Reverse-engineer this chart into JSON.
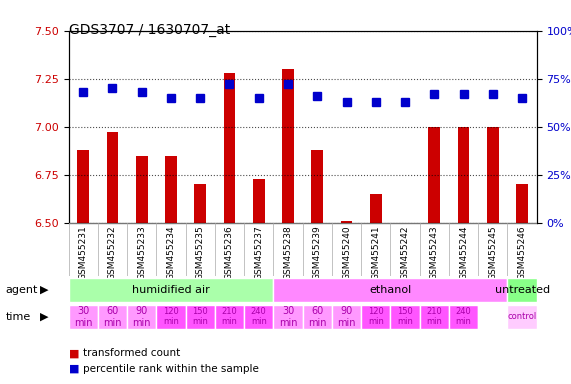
{
  "title": "GDS3707 / 1630707_at",
  "samples": [
    "GSM455231",
    "GSM455232",
    "GSM455233",
    "GSM455234",
    "GSM455235",
    "GSM455236",
    "GSM455237",
    "GSM455238",
    "GSM455239",
    "GSM455240",
    "GSM455241",
    "GSM455242",
    "GSM455243",
    "GSM455244",
    "GSM455245",
    "GSM455246"
  ],
  "transformed_count": [
    6.88,
    6.97,
    6.85,
    6.85,
    6.7,
    7.28,
    6.73,
    7.3,
    6.88,
    6.51,
    6.65,
    6.5,
    7.0,
    7.0,
    7.0,
    6.7
  ],
  "percentile_rank": [
    68,
    70,
    68,
    65,
    65,
    72,
    65,
    72,
    66,
    63,
    63,
    63,
    67,
    67,
    67,
    65
  ],
  "ylim_left": [
    6.5,
    7.5
  ],
  "ylim_right": [
    0,
    100
  ],
  "yticks_left": [
    6.5,
    6.75,
    7.0,
    7.25,
    7.5
  ],
  "yticks_right": [
    0,
    25,
    50,
    75,
    100
  ],
  "bar_color": "#cc0000",
  "dot_color": "#0000cc",
  "agent_groups": [
    {
      "label": "humidified air",
      "start": 0,
      "end": 7,
      "color": "#aaffaa"
    },
    {
      "label": "ethanol",
      "start": 7,
      "end": 15,
      "color": "#ff88ff"
    },
    {
      "label": "untreated",
      "start": 15,
      "end": 16,
      "color": "#88ff88"
    }
  ],
  "time_labels": [
    "30\nmin",
    "60\nmin",
    "90\nmin",
    "120\nmin",
    "150\nmin",
    "210\nmin",
    "240\nmin",
    "30\nmin",
    "60\nmin",
    "90\nmin",
    "120\nmin",
    "150\nmin",
    "210\nmin",
    "240\nmin",
    "control"
  ],
  "time_colors": [
    "#ff88ff",
    "#ff88ff",
    "#ff88ff",
    "#ff44ff",
    "#ff44ff",
    "#ff44ff",
    "#ff44ff",
    "#ff88ff",
    "#ff88ff",
    "#ff88ff",
    "#ff44ff",
    "#ff44ff",
    "#ff44ff",
    "#ff44ff",
    "#ffccff"
  ],
  "time_indices": [
    0,
    1,
    2,
    3,
    4,
    5,
    6,
    7,
    8,
    9,
    10,
    11,
    12,
    13,
    15
  ],
  "grid_color": "#888888",
  "background_color": "#ffffff",
  "tick_label_color_left": "#cc0000",
  "tick_label_color_right": "#0000cc"
}
